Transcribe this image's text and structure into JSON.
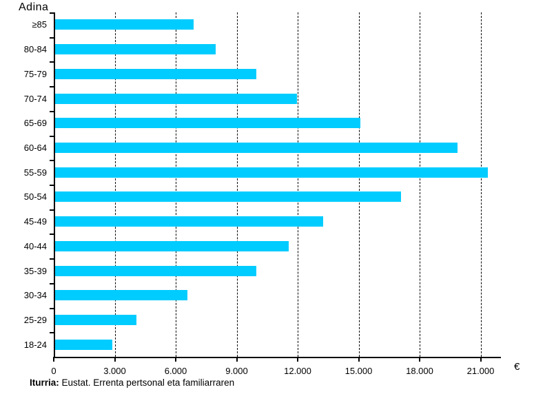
{
  "chart_data": {
    "type": "bar",
    "orientation": "horizontal",
    "title": "Adina",
    "y_axis_title": "Adina",
    "x_unit": "€",
    "categories": [
      "≥85",
      "80-84",
      "75-79",
      "70-74",
      "65-69",
      "60-64",
      "55-59",
      "50-54",
      "45-49",
      "40-44",
      "35-39",
      "30-34",
      "25-29",
      "18-24"
    ],
    "values": [
      6800,
      7900,
      9900,
      11900,
      15000,
      19800,
      21300,
      17000,
      13200,
      11500,
      9900,
      6500,
      4000,
      2800
    ],
    "x_tick_labels": [
      "0",
      "3.000",
      "6.000",
      "9.000",
      "12.000",
      "15.000",
      "18.000",
      "21.000"
    ],
    "x_tick_values": [
      0,
      3000,
      6000,
      9000,
      12000,
      15000,
      18000,
      21000
    ],
    "xlim": [
      0,
      22000
    ],
    "grid": "vertical-dashed",
    "legend": "none",
    "bar_color": "#00CCFF"
  },
  "footer": {
    "source_label": "Iturria:",
    "source_text": " Eustat. Errenta pertsonal eta familiarraren"
  }
}
